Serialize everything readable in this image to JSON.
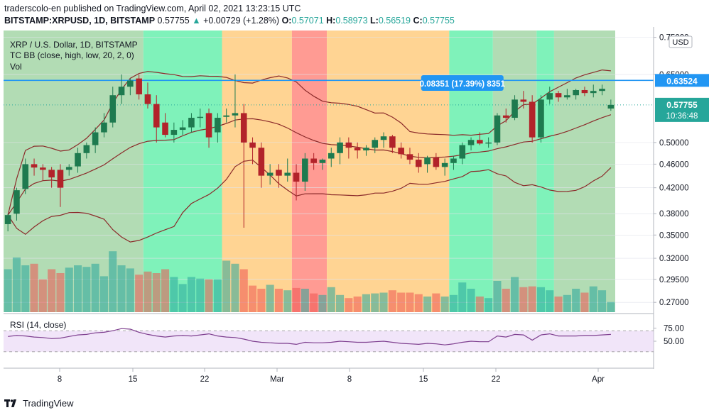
{
  "header": {
    "publisher_line": "traderscolo-en published on TradingView.com, April 02, 2021 13:23:15 UTC",
    "symbol": "BITSTAMP:XRPUSD, 1D, BITSTAMP",
    "last": "0.57755",
    "change": "+0.00729 (+1.28%)",
    "o_label": "O:",
    "o": "0.57071",
    "h_label": "H:",
    "h": "0.58973",
    "l_label": "L:",
    "l": "0.56519",
    "c_label": "C:",
    "c": "0.57755"
  },
  "footer": {
    "brand": "TradingView"
  },
  "colors": {
    "up": "#26a69a",
    "down": "#ef5350",
    "dark_up": "#1b5e20",
    "dark_down": "#8b1a1a",
    "bb_line": "#8b2a2a",
    "hline": "#2196f3",
    "rsi_line": "#7e3f8f",
    "band_green": "#a5d6a7",
    "band_mint": "#69f0ae",
    "band_orange": "#ffcc80",
    "band_red": "#ff8a80"
  },
  "chart_data": {
    "type": "candlestick",
    "title": "XRP / U.S. Dollar, 1D, BITSTAMP",
    "indicator_label": "TC BB (close, high, low, 20, 2, 0)",
    "volume_label": "Vol",
    "y_scale": "log",
    "y_ticks": [
      "0.75000",
      "0.65000",
      "0.50000",
      "0.46000",
      "0.42000",
      "0.38000",
      "0.35000",
      "0.32000",
      "0.29500",
      "0.27000"
    ],
    "y_unit": "USD",
    "x_ticks": [
      "8",
      "15",
      "22",
      "Mar",
      "8",
      "15",
      "22",
      "Apr"
    ],
    "ylim": [
      0.26,
      0.77
    ],
    "last_price_label": "0.57755",
    "countdown": "10:36:48",
    "horizontal_line": {
      "value": 0.63524,
      "label": "0.63524"
    },
    "measure_label": "0.08351 (17.39%) 8351",
    "candles": [
      {
        "o": 0.365,
        "h": 0.38,
        "l": 0.355,
        "c": 0.378,
        "v": 0.55
      },
      {
        "o": 0.38,
        "h": 0.42,
        "l": 0.37,
        "c": 0.416,
        "v": 0.7
      },
      {
        "o": 0.418,
        "h": 0.47,
        "l": 0.41,
        "c": 0.46,
        "v": 0.6
      },
      {
        "o": 0.46,
        "h": 0.47,
        "l": 0.44,
        "c": 0.454,
        "v": 0.62
      },
      {
        "o": 0.454,
        "h": 0.46,
        "l": 0.432,
        "c": 0.45,
        "v": 0.42
      },
      {
        "o": 0.45,
        "h": 0.455,
        "l": 0.42,
        "c": 0.437,
        "v": 0.55
      },
      {
        "o": 0.45,
        "h": 0.46,
        "l": 0.39,
        "c": 0.42,
        "v": 0.5
      },
      {
        "o": 0.45,
        "h": 0.46,
        "l": 0.44,
        "c": 0.455,
        "v": 0.57
      },
      {
        "o": 0.456,
        "h": 0.49,
        "l": 0.445,
        "c": 0.48,
        "v": 0.6
      },
      {
        "o": 0.48,
        "h": 0.5,
        "l": 0.47,
        "c": 0.495,
        "v": 0.58
      },
      {
        "o": 0.495,
        "h": 0.53,
        "l": 0.48,
        "c": 0.52,
        "v": 0.62
      },
      {
        "o": 0.52,
        "h": 0.56,
        "l": 0.51,
        "c": 0.54,
        "v": 0.46
      },
      {
        "o": 0.54,
        "h": 0.62,
        "l": 0.53,
        "c": 0.6,
        "v": 0.78
      },
      {
        "o": 0.6,
        "h": 0.65,
        "l": 0.58,
        "c": 0.62,
        "v": 0.6
      },
      {
        "o": 0.62,
        "h": 0.64,
        "l": 0.6,
        "c": 0.635,
        "v": 0.56
      },
      {
        "o": 0.64,
        "h": 0.65,
        "l": 0.59,
        "c": 0.602,
        "v": 0.48
      },
      {
        "o": 0.602,
        "h": 0.63,
        "l": 0.57,
        "c": 0.58,
        "v": 0.52
      },
      {
        "o": 0.58,
        "h": 0.6,
        "l": 0.5,
        "c": 0.53,
        "v": 0.5
      },
      {
        "o": 0.54,
        "h": 0.56,
        "l": 0.51,
        "c": 0.515,
        "v": 0.55
      },
      {
        "o": 0.515,
        "h": 0.54,
        "l": 0.5,
        "c": 0.525,
        "v": 0.45
      },
      {
        "o": 0.525,
        "h": 0.545,
        "l": 0.515,
        "c": 0.53,
        "v": 0.36
      },
      {
        "o": 0.53,
        "h": 0.56,
        "l": 0.52,
        "c": 0.55,
        "v": 0.45
      },
      {
        "o": 0.55,
        "h": 0.57,
        "l": 0.53,
        "c": 0.552,
        "v": 0.43
      },
      {
        "o": 0.56,
        "h": 0.57,
        "l": 0.49,
        "c": 0.51,
        "v": 0.42
      },
      {
        "o": 0.52,
        "h": 0.56,
        "l": 0.5,
        "c": 0.55,
        "v": 0.42
      },
      {
        "o": 0.552,
        "h": 0.57,
        "l": 0.54,
        "c": 0.555,
        "v": 0.66
      },
      {
        "o": 0.555,
        "h": 0.65,
        "l": 0.53,
        "c": 0.56,
        "v": 0.62
      },
      {
        "o": 0.56,
        "h": 0.58,
        "l": 0.36,
        "c": 0.5,
        "v": 0.55
      },
      {
        "o": 0.5,
        "h": 0.51,
        "l": 0.46,
        "c": 0.49,
        "v": 0.34
      },
      {
        "o": 0.49,
        "h": 0.5,
        "l": 0.42,
        "c": 0.44,
        "v": 0.3
      },
      {
        "o": 0.44,
        "h": 0.46,
        "l": 0.425,
        "c": 0.445,
        "v": 0.35
      },
      {
        "o": 0.45,
        "h": 0.46,
        "l": 0.42,
        "c": 0.44,
        "v": 0.3
      },
      {
        "o": 0.44,
        "h": 0.47,
        "l": 0.43,
        "c": 0.445,
        "v": 0.28
      },
      {
        "o": 0.445,
        "h": 0.46,
        "l": 0.4,
        "c": 0.43,
        "v": 0.31
      },
      {
        "o": 0.43,
        "h": 0.48,
        "l": 0.415,
        "c": 0.47,
        "v": 0.3
      },
      {
        "o": 0.47,
        "h": 0.48,
        "l": 0.45,
        "c": 0.462,
        "v": 0.24
      },
      {
        "o": 0.462,
        "h": 0.47,
        "l": 0.45,
        "c": 0.468,
        "v": 0.22
      },
      {
        "o": 0.47,
        "h": 0.49,
        "l": 0.455,
        "c": 0.48,
        "v": 0.32
      },
      {
        "o": 0.48,
        "h": 0.51,
        "l": 0.46,
        "c": 0.5,
        "v": 0.22
      },
      {
        "o": 0.5,
        "h": 0.51,
        "l": 0.47,
        "c": 0.49,
        "v": 0.18
      },
      {
        "o": 0.49,
        "h": 0.5,
        "l": 0.47,
        "c": 0.485,
        "v": 0.2
      },
      {
        "o": 0.485,
        "h": 0.495,
        "l": 0.475,
        "c": 0.49,
        "v": 0.23
      },
      {
        "o": 0.49,
        "h": 0.51,
        "l": 0.48,
        "c": 0.505,
        "v": 0.24
      },
      {
        "o": 0.505,
        "h": 0.52,
        "l": 0.49,
        "c": 0.512,
        "v": 0.25
      },
      {
        "o": 0.512,
        "h": 0.515,
        "l": 0.48,
        "c": 0.49,
        "v": 0.28
      },
      {
        "o": 0.49,
        "h": 0.5,
        "l": 0.47,
        "c": 0.478,
        "v": 0.25
      },
      {
        "o": 0.478,
        "h": 0.49,
        "l": 0.46,
        "c": 0.468,
        "v": 0.25
      },
      {
        "o": 0.468,
        "h": 0.48,
        "l": 0.445,
        "c": 0.455,
        "v": 0.23
      },
      {
        "o": 0.46,
        "h": 0.475,
        "l": 0.445,
        "c": 0.472,
        "v": 0.2
      },
      {
        "o": 0.472,
        "h": 0.48,
        "l": 0.45,
        "c": 0.455,
        "v": 0.24
      },
      {
        "o": 0.455,
        "h": 0.47,
        "l": 0.44,
        "c": 0.462,
        "v": 0.2
      },
      {
        "o": 0.462,
        "h": 0.475,
        "l": 0.45,
        "c": 0.47,
        "v": 0.22
      },
      {
        "o": 0.47,
        "h": 0.5,
        "l": 0.46,
        "c": 0.495,
        "v": 0.38
      },
      {
        "o": 0.495,
        "h": 0.51,
        "l": 0.485,
        "c": 0.505,
        "v": 0.3
      },
      {
        "o": 0.505,
        "h": 0.52,
        "l": 0.495,
        "c": 0.498,
        "v": 0.2
      },
      {
        "o": 0.498,
        "h": 0.51,
        "l": 0.49,
        "c": 0.5,
        "v": 0.18
      },
      {
        "o": 0.5,
        "h": 0.56,
        "l": 0.495,
        "c": 0.555,
        "v": 0.4
      },
      {
        "o": 0.555,
        "h": 0.57,
        "l": 0.54,
        "c": 0.55,
        "v": 0.3
      },
      {
        "o": 0.55,
        "h": 0.6,
        "l": 0.545,
        "c": 0.59,
        "v": 0.45
      },
      {
        "o": 0.59,
        "h": 0.61,
        "l": 0.57,
        "c": 0.585,
        "v": 0.32
      },
      {
        "o": 0.585,
        "h": 0.6,
        "l": 0.5,
        "c": 0.51,
        "v": 0.33
      },
      {
        "o": 0.51,
        "h": 0.6,
        "l": 0.5,
        "c": 0.59,
        "v": 0.32
      },
      {
        "o": 0.59,
        "h": 0.62,
        "l": 0.58,
        "c": 0.605,
        "v": 0.28
      },
      {
        "o": 0.605,
        "h": 0.61,
        "l": 0.585,
        "c": 0.595,
        "v": 0.2
      },
      {
        "o": 0.595,
        "h": 0.615,
        "l": 0.59,
        "c": 0.6,
        "v": 0.22
      },
      {
        "o": 0.6,
        "h": 0.615,
        "l": 0.59,
        "c": 0.612,
        "v": 0.3
      },
      {
        "o": 0.612,
        "h": 0.62,
        "l": 0.598,
        "c": 0.605,
        "v": 0.25
      },
      {
        "o": 0.605,
        "h": 0.625,
        "l": 0.595,
        "c": 0.61,
        "v": 0.33
      },
      {
        "o": 0.61,
        "h": 0.625,
        "l": 0.6,
        "c": 0.615,
        "v": 0.28
      },
      {
        "o": 0.57,
        "h": 0.59,
        "l": 0.565,
        "c": 0.578,
        "v": 0.13
      }
    ],
    "rsi": {
      "label": "RSI (14, close)",
      "ticks": [
        "75.00",
        "50.00"
      ],
      "values": [
        59,
        61,
        60,
        58,
        57,
        55,
        56,
        59,
        62,
        63,
        66,
        67,
        70,
        74,
        73,
        67,
        63,
        60,
        58,
        60,
        61,
        60,
        62,
        64,
        60,
        58,
        57,
        54,
        50,
        48,
        47,
        46,
        46,
        44,
        48,
        47,
        47,
        48,
        50,
        49,
        48,
        48,
        49,
        50,
        48,
        46,
        45,
        44,
        46,
        45,
        43,
        45,
        48,
        50,
        49,
        49,
        60,
        58,
        63,
        62,
        52,
        62,
        64,
        60,
        60,
        60,
        61,
        61,
        62,
        63
      ]
    }
  }
}
